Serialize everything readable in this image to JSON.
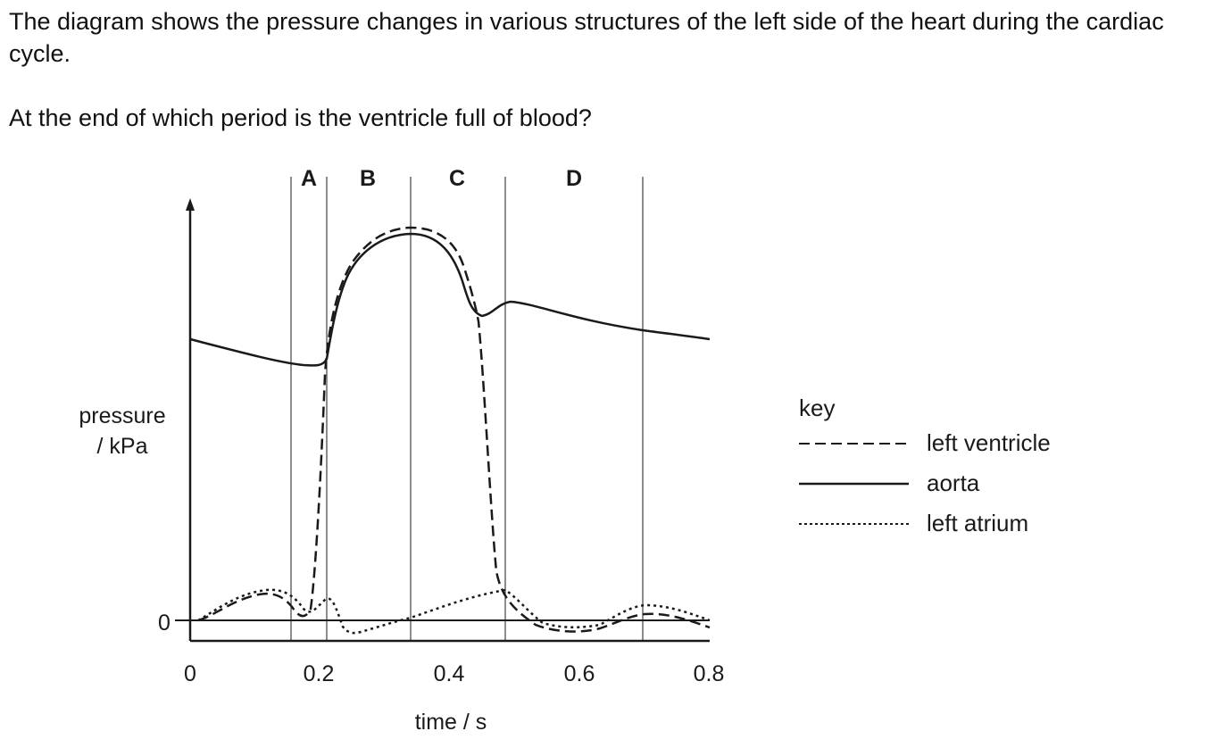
{
  "question": {
    "stem": "The diagram shows the pressure changes in various structures of the left side of the heart during the cardiac cycle.",
    "prompt": "At the end of which period is the ventricle full of blood?"
  },
  "chart": {
    "y_label_line1": "pressure",
    "y_label_line2": "/ kPa",
    "y_zero_label": "0",
    "x_label": "time / s",
    "x_ticks": [
      "0",
      "0.2",
      "0.4",
      "0.6",
      "0.8"
    ],
    "periods": [
      "A",
      "B",
      "C",
      "D"
    ]
  },
  "key": {
    "title": "key",
    "entries": [
      {
        "label": "left ventricle",
        "line_style": "dashed"
      },
      {
        "label": "aorta",
        "line_style": "solid"
      },
      {
        "label": "left atrium",
        "line_style": "dotted"
      }
    ]
  },
  "colors": {
    "ink": "#1a1a1a",
    "background": "#ffffff"
  }
}
